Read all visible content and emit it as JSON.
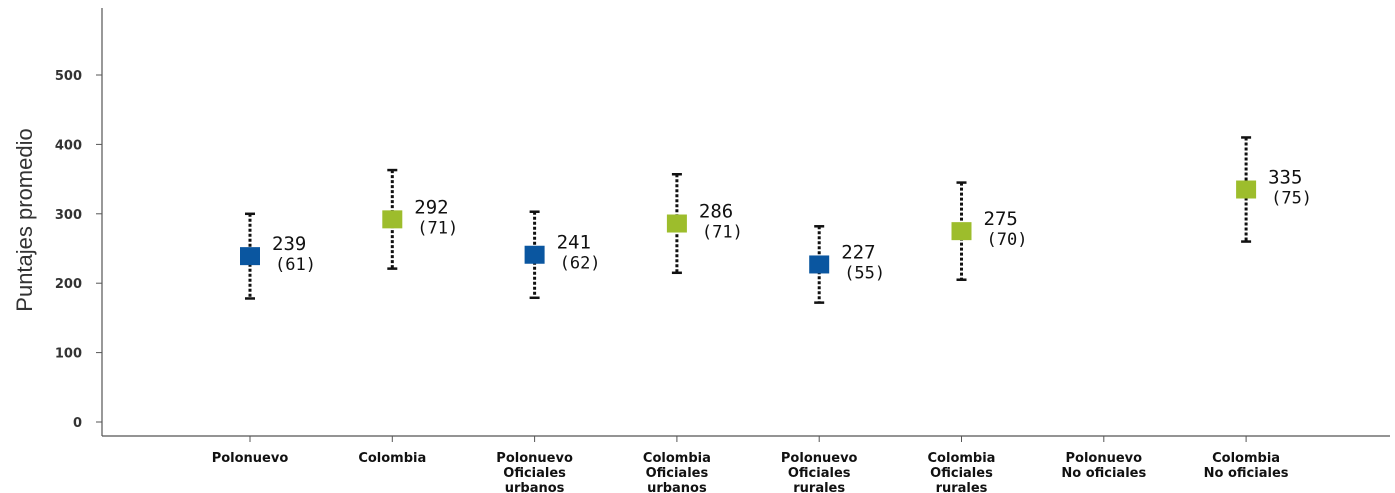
{
  "chart_data": {
    "type": "scatter",
    "ylabel": "Puntajes promedio",
    "xlabel": "",
    "ylim": [
      0,
      500
    ],
    "yticks": [
      "0",
      "100",
      "200",
      "300",
      "400",
      "500"
    ],
    "grid": false,
    "categories": [
      [
        "Polonuevo"
      ],
      [
        "Colombia"
      ],
      [
        "Polonuevo",
        "Oficiales",
        "urbanos"
      ],
      [
        "Colombia",
        "Oficiales",
        "urbanos"
      ],
      [
        "Polonuevo",
        "Oficiales",
        "rurales"
      ],
      [
        "Colombia",
        "Oficiales",
        "rurales"
      ],
      [
        "Polonuevo",
        "No oficiales"
      ],
      [
        "Colombia",
        "No oficiales"
      ]
    ],
    "points": [
      {
        "mean": 239,
        "sd": 61,
        "value_label": "239",
        "sd_label": "(61)",
        "color": "#0a56a0"
      },
      {
        "mean": 292,
        "sd": 71,
        "value_label": "292",
        "sd_label": "(71)",
        "color": "#9dbd2c"
      },
      {
        "mean": 241,
        "sd": 62,
        "value_label": "241",
        "sd_label": "(62)",
        "color": "#0a56a0"
      },
      {
        "mean": 286,
        "sd": 71,
        "value_label": "286",
        "sd_label": "(71)",
        "color": "#9dbd2c"
      },
      {
        "mean": 227,
        "sd": 55,
        "value_label": "227",
        "sd_label": "(55)",
        "color": "#0a56a0"
      },
      {
        "mean": 275,
        "sd": 70,
        "value_label": "275",
        "sd_label": "(70)",
        "color": "#9dbd2c"
      },
      null,
      {
        "mean": 335,
        "sd": 75,
        "value_label": "335",
        "sd_label": "(75)",
        "color": "#9dbd2c"
      }
    ],
    "colors": {
      "polonuevo": "#0a56a0",
      "colombia": "#9dbd2c",
      "axis": "#555555"
    }
  }
}
